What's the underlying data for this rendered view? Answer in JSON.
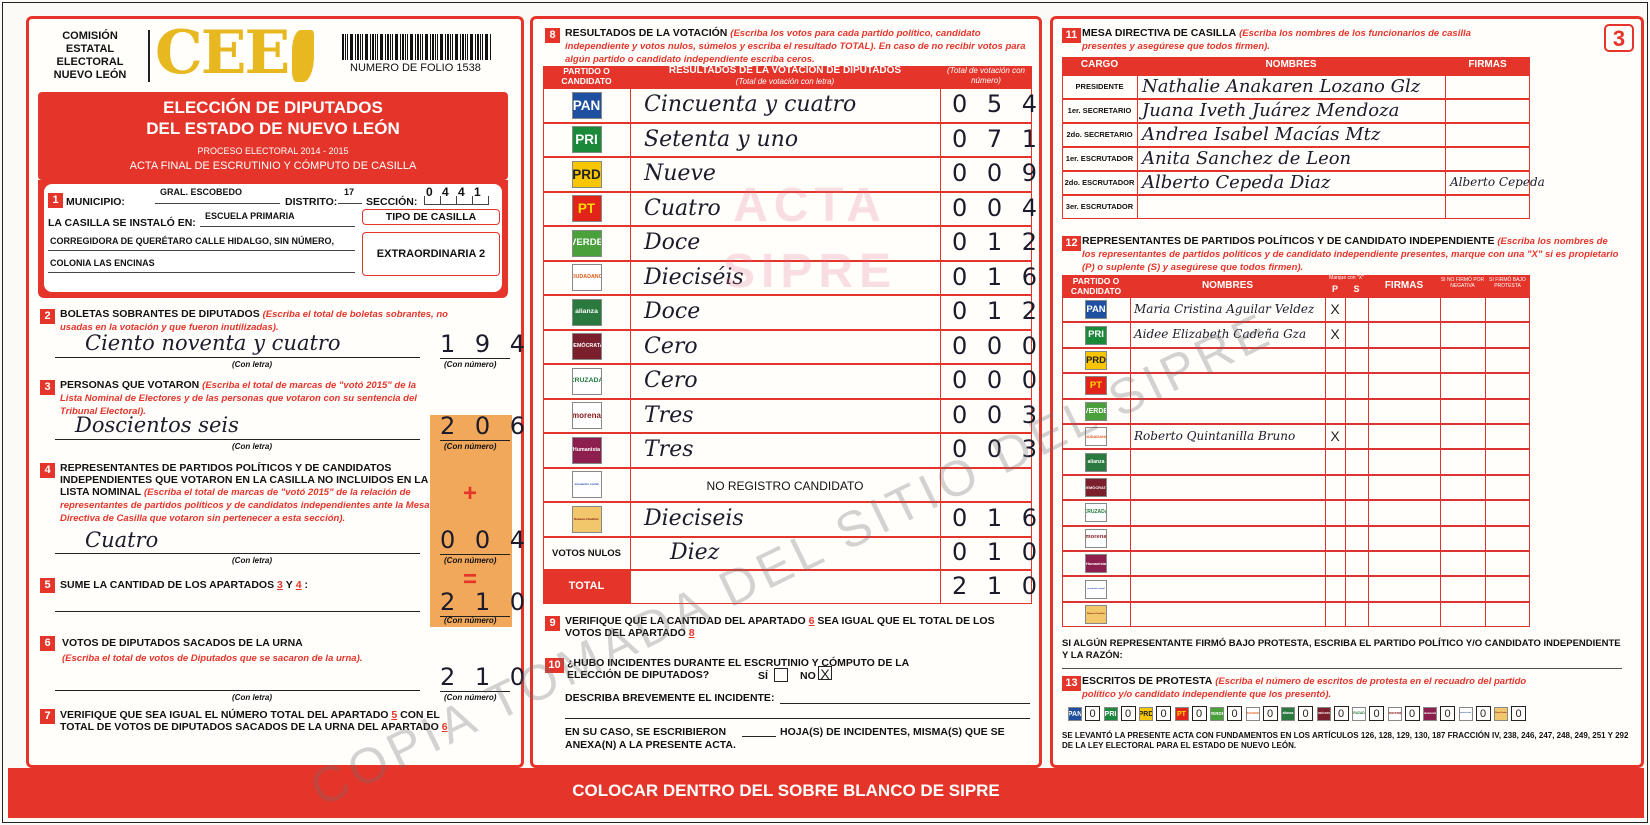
{
  "header": {
    "org": [
      "COMISIÓN",
      "ESTATAL",
      "ELECTORAL",
      "NUEVO LEÓN"
    ],
    "logo": "CEE",
    "folio": "NUMERO DE FOLIO 1538",
    "title": [
      "ELECCIÓN DE DIPUTADOS",
      "DEL ESTADO DE NUEVO LEÓN"
    ],
    "process": "PROCESO ELECTORAL  2014 - 2015",
    "act": "ACTA FINAL DE ESCRUTINIO Y CÓMPUTO DE CASILLA",
    "page": "3"
  },
  "captions": {
    "letter": "(Con letra)",
    "number": "(Con número)"
  },
  "parties": [
    {
      "label": "PAN",
      "color": "#1f4fa0",
      "ink": "#ffffff"
    },
    {
      "label": "PRI",
      "color": "#1a8a3a",
      "ink": "#ffffff"
    },
    {
      "label": "PRD",
      "color": "#f7c600",
      "ink": "#222222"
    },
    {
      "label": "PT",
      "color": "#e2231a",
      "ink": "#ffdd00"
    },
    {
      "label": "VERDE",
      "color": "#4aa13b",
      "ink": "#ffffff"
    },
    {
      "label": "CIUDADANO",
      "color": "#ffffff",
      "ink": "#e25a1c"
    },
    {
      "label": "alianza",
      "color": "#2a7a3f",
      "ink": "#ffffff"
    },
    {
      "label": "DEMÓCRATA",
      "color": "#7a1f2b",
      "ink": "#ffffff"
    },
    {
      "label": "CRUZADA",
      "color": "#ffffff",
      "ink": "#1e7a3a"
    },
    {
      "label": "morena",
      "color": "#ffffff",
      "ink": "#8b1a1a"
    },
    {
      "label": "Humanista",
      "color": "#8c1f4d",
      "ink": "#ffffff"
    },
    {
      "label": "encuentro social",
      "color": "#ffffff",
      "ink": "#1e4aa0"
    },
    {
      "label": "Rebeca Clouthier",
      "color": "#f2c66b",
      "ink": "#7a1010"
    }
  ],
  "s1": {
    "num": "1",
    "municipio_label": "MUNICIPIO:",
    "municipio": "GRAL. ESCOBEDO",
    "distrito_label": "DISTRITO:",
    "distrito": "17",
    "seccion_label": "SECCIÓN:",
    "seccion": "0 4 4 1",
    "lugar_label": "LA CASILLA SE INSTALÓ EN:",
    "lugar": [
      "ESCUELA PRIMARIA",
      "CORREGIDORA DE QUERÉTARO CALLE HIDALGO, SIN NÚMERO,",
      "COLONIA LAS ENCINAS"
    ],
    "tipo_label": "TIPO DE CASILLA",
    "tipo": "EXTRAORDINARIA 2"
  },
  "s2": {
    "num": "2",
    "heading": "BOLETAS SOBRANTES DE DIPUTADOS",
    "note": "(Escriba el total de boletas sobrantes, no usadas en la votación y que fueron inutilizadas).",
    "letters": "Ciento noventa y cuatro",
    "number": "1 9 4"
  },
  "s3": {
    "num": "3",
    "heading": "PERSONAS QUE VOTARON",
    "note": "(Escriba el total de marcas de \"votó 2015\" de la Lista Nominal de Electores y de las personas que votaron con su sentencia del Tribunal Electoral).",
    "letters": "Doscientos seis",
    "number": "2 0 6"
  },
  "s4": {
    "num": "4",
    "heading": "REPRESENTANTES DE PARTIDOS POLÍTICOS Y DE CANDIDATOS INDEPENDIENTES QUE VOTARON EN LA CASILLA NO INCLUIDOS EN LA LISTA NOMINAL",
    "note": "(Escriba el total de marcas de \"votó 2015\" de la relación de representantes de partidos políticos y de candidatos independientes ante la Mesa Directiva de Casilla que votaron sin pertenecer a esta sección).",
    "sign": "+",
    "letters": "Cuatro",
    "number": "0 0 4"
  },
  "s5": {
    "num": "5",
    "heading": "SUME LA CANTIDAD DE LOS APARTADOS",
    "ref_a": "3",
    "conj": "Y",
    "ref_b": "4",
    "punct": ":",
    "sign": "=",
    "number": "2 1 0"
  },
  "s6": {
    "num": "6",
    "heading": "VOTOS DE DIPUTADOS SACADOS DE LA URNA",
    "note": "(Escriba el total de votos de Diputados que se sacaron de la urna).",
    "number": "2 1 0"
  },
  "s7": {
    "num": "7",
    "heading": "VERIFIQUE QUE SEA IGUAL EL NÚMERO TOTAL DEL APARTADO",
    "ref": "5",
    "rest": "CON EL TOTAL DE VOTOS DE DIPUTADOS SACADOS DE LA URNA DEL APARTADO",
    "ref2": "6"
  },
  "s8": {
    "num": "8",
    "heading": "RESULTADOS DE LA VOTACIÓN",
    "note": "(Escriba los votos para cada partido político, candidato independiente y votos nulos, súmelos y escriba el resultado TOTAL). En caso de no recibir votos para algún partido o candidato independiente escriba ceros.",
    "col_party": "PARTIDO O CANDIDATO",
    "col_result": "RESULTADOS DE LA VOTACIÓN DE DIPUTADOS",
    "col_letter": "(Total de votación con letra)",
    "col_number": "(Total de votación con número)",
    "rows": [
      {
        "letters": "Cincuenta y cuatro",
        "number": "0 5 4"
      },
      {
        "letters": "Setenta y uno",
        "number": "0 7 1"
      },
      {
        "letters": "Nueve",
        "number": "0 0 9"
      },
      {
        "letters": "Cuatro",
        "number": "0 0 4"
      },
      {
        "letters": "Doce",
        "number": "0 1 2"
      },
      {
        "letters": "Dieciséis",
        "number": "0 1 6"
      },
      {
        "letters": "Doce",
        "number": "0 1 2"
      },
      {
        "letters": "Cero",
        "number": "0 0 0"
      },
      {
        "letters": "Cero",
        "number": "0 0 0"
      },
      {
        "letters": "Tres",
        "number": "0 0 3"
      },
      {
        "letters": "Tres",
        "number": "0 0 3"
      },
      {
        "letters": "NO REGISTRO CANDIDATO"
      },
      {
        "letters": "Dieciseis",
        "number": "0 1 6"
      }
    ],
    "nulos": {
      "label": "VOTOS NULOS",
      "letters": "Diez",
      "number": "0 1 0"
    },
    "total": {
      "label": "TOTAL",
      "number": "2 1 0"
    }
  },
  "s9": {
    "num": "9",
    "heading": "VERIFIQUE QUE LA CANTIDAD DEL APARTADO",
    "ref": "6",
    "rest": "SEA IGUAL QUE EL TOTAL DE LOS VOTOS DEL APARTADO",
    "ref2": "8"
  },
  "s10": {
    "num": "10",
    "question": "¿HUBO INCIDENTES DURANTE EL ESCRUTINIO Y CÓMPUTO DE LA ELECCIÓN DE DIPUTADOS?",
    "yes": "SÍ",
    "no": "NO",
    "mark": "X",
    "describe": "DESCRIBA BREVEMENTE EL INCIDENTE:",
    "sheets": "EN SU CASO, SE ESCRIBIERON",
    "sheets_rest": [
      "HOJA(S) DE INCIDENTES, MISMA(S) QUE SE",
      "ANEXA(N) A LA PRESENTE ACTA."
    ]
  },
  "s11": {
    "num": "11",
    "heading": "MESA DIRECTIVA DE CASILLA",
    "note": "(Escriba los nombres de los funcionarios de casilla presentes y asegúrese que todos firmen).",
    "cols": [
      "CARGO",
      "NOMBRES",
      "FIRMAS"
    ],
    "rows": [
      {
        "cargo": "PRESIDENTE",
        "name": "Nathalie Anakaren Lozano Glz"
      },
      {
        "cargo": "1er. SECRETARIO",
        "name": "Juana Iveth Juárez Mendoza"
      },
      {
        "cargo": "2do. SECRETARIO",
        "name": "Andrea Isabel Macías Mtz"
      },
      {
        "cargo": "1er. ESCRUTADOR",
        "name": "Anita Sanchez de Leon"
      },
      {
        "cargo": "2do. ESCRUTADOR",
        "name": "Alberto Cepeda Diaz",
        "signature": "Alberto Cepeda"
      },
      {
        "cargo": "3er. ESCRUTADOR"
      }
    ]
  },
  "s12": {
    "num": "12",
    "heading": "REPRESENTANTES DE PARTIDOS POLÍTICOS Y DE CANDIDATO INDEPENDIENTE",
    "note": "(Escriba los nombres de los representantes de partidos políticos y de candidato independiente presentes, marque con una \"X\" si es propietario (P) o suplente (S) y asegúrese que todos firmen).",
    "col_party": "PARTIDO O CANDIDATO",
    "col_names": "NOMBRES",
    "col_mark": "Marque con \"X\"",
    "col_p": "P",
    "col_s": "S",
    "col_sign": "FIRMAS",
    "col_neg": "SI NO FIRMÓ POR NEGATIVA",
    "col_prot": "SI FIRMÓ BAJO PROTESTA",
    "rows": [
      {
        "name": "Maria Cristina Aguilar Veldez",
        "p": "X"
      },
      {
        "name": "Aidee Elizabeth Cadeña Gza",
        "p": "X"
      },
      null,
      null,
      null,
      {
        "name": "Roberto Quintanilla Bruno",
        "p": "X"
      },
      null,
      null,
      null,
      null,
      null,
      null,
      null
    ],
    "protest_note": "SI ALGÚN REPRESENTANTE FIRMÓ BAJO PROTESTA, ESCRIBA EL PARTIDO POLÍTICO Y/O CANDIDATO INDEPENDIENTE Y LA RAZÓN:"
  },
  "s13": {
    "num": "13",
    "heading": "ESCRITOS DE PROTESTA",
    "note": "(Escriba el número de escritos de protesta en el recuadro del partido político y/o candidato independiente que los presentó).",
    "counts": [
      "0",
      "0",
      "0",
      "0",
      "0",
      "0",
      "0",
      "0",
      "0",
      "0",
      "0",
      "0",
      "0"
    ]
  },
  "legal": "SE LEVANTÓ LA PRESENTE ACTA CON FUNDAMENTOS EN LOS ARTÍCULOS 126, 128, 129, 130, 187 FRACCIÓN IV, 238, 246, 247, 248, 249, 251 Y 292 DE LA LEY ELECTORAL PARA EL ESTADO DE NUEVO LEÓN.",
  "footer": "COLOCAR DENTRO DEL SOBRE BLANCO DE SIPRE",
  "watermark": {
    "stamp": [
      "ACTA",
      "SIPRE"
    ],
    "diagonal": "COPIA TOMADA DEL SITIO DEL SIPRE"
  }
}
